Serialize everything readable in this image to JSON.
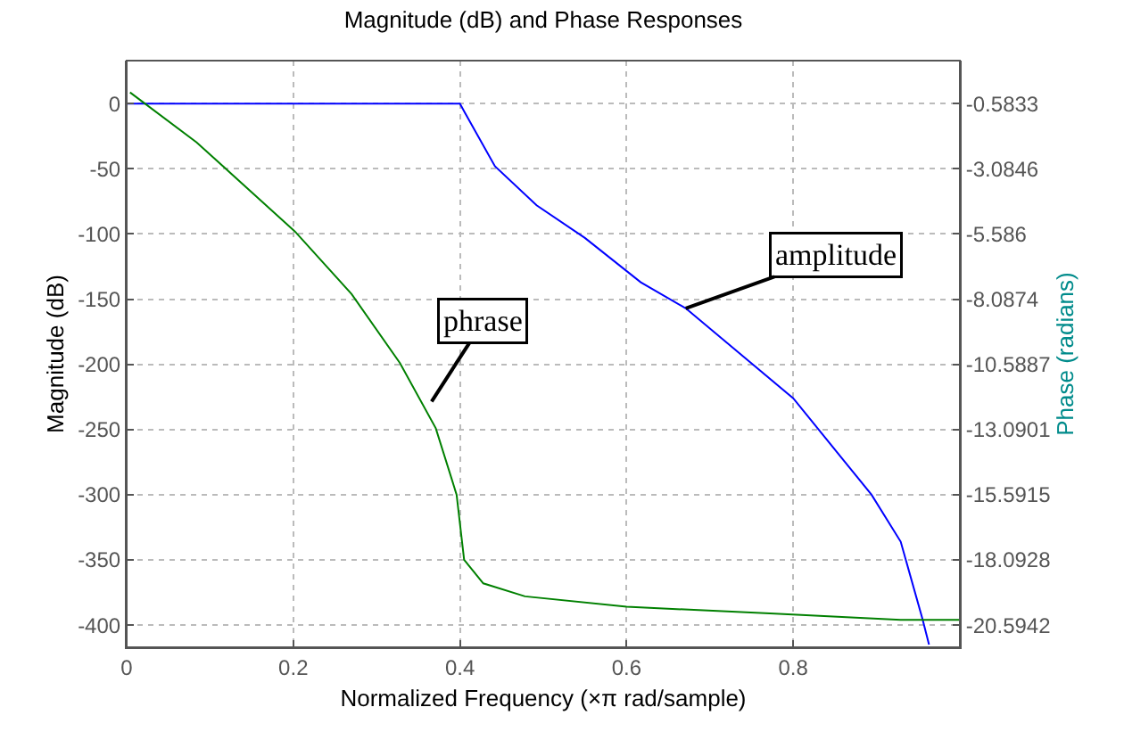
{
  "chart_data": {
    "type": "line",
    "title": "Magnitude (dB) and Phase Responses",
    "xlabel": "Normalized Frequency (×π rad/sample)",
    "ylabel": "Magnitude (dB)",
    "y2label": "Phase (radians)",
    "xlim": [
      0,
      1
    ],
    "xticks": [
      0,
      0.2,
      0.4,
      0.6,
      0.8
    ],
    "ylim": [
      -417,
      33
    ],
    "yticks": [
      0,
      -50,
      -100,
      -150,
      -200,
      -250,
      -300,
      -350,
      -400
    ],
    "y2lim": [
      -21.444,
      1.0676
    ],
    "y2ticks": [
      -0.5833,
      -3.0846,
      -5.586,
      -8.0874,
      -10.5887,
      -13.0901,
      -15.5915,
      -18.0928,
      -20.5942
    ],
    "grid": true,
    "line_style": "solid",
    "marker": "none",
    "series": [
      {
        "color": "#0000ff",
        "x": [
          0,
          0.4,
          0.406,
          0.442,
          0.492,
          0.55,
          0.617,
          0.671,
          0.8,
          0.894,
          0.929,
          0.955,
          0.963
        ],
        "values": [
          0,
          0,
          -7,
          -48,
          -78,
          -103,
          -137,
          -157,
          -226,
          -300,
          -336,
          -395,
          -415
        ]
      },
      {
        "color": "#008000",
        "axis": "y2",
        "x": [
          0.004,
          0.084,
          0.202,
          0.27,
          0.328,
          0.371,
          0.396,
          0.405,
          0.428,
          0.478,
          0.6,
          0.772,
          0.929,
          1.0
        ],
        "values": [
          -0.15,
          -2.07,
          -5.49,
          -7.89,
          -10.54,
          -13.04,
          -15.59,
          -18.09,
          -18.99,
          -19.49,
          -19.89,
          -20.14,
          -20.39,
          -20.39
        ]
      }
    ],
    "annotations": [
      "phrase",
      {
        "text": "amplitude",
        "x": 0.671,
        "y": -157
      }
    ]
  }
}
